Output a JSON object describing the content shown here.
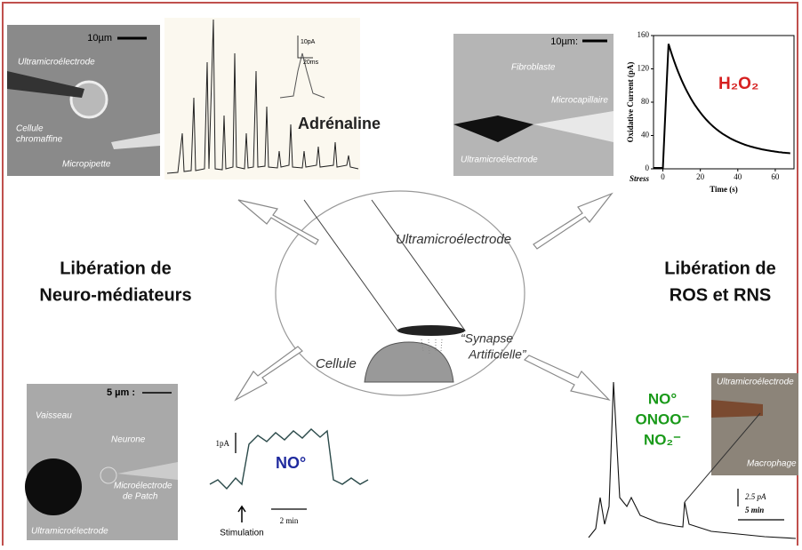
{
  "center": {
    "electrode": "Ultramicroélectrode",
    "cell": "Cellule",
    "synapse": [
      "“Synapse",
      "Artificielle”"
    ]
  },
  "left_title": [
    "Libération de",
    "Neuro-médiateurs"
  ],
  "right_title": [
    "Libération de",
    "ROS et RNS"
  ],
  "top_left": {
    "scale": "10µm",
    "labels": [
      "Ultramicroélectrode",
      "Cellule",
      "chromaffine",
      "Micropipette"
    ]
  },
  "adrenaline": {
    "label": "Adrénaline",
    "scale_current": "10pA",
    "scale_time": "20ms"
  },
  "top_right": {
    "scale": "10µm:",
    "labels": [
      "Fibroblaste",
      "Microcapillaire",
      "Ultramicroélectrode"
    ]
  },
  "h2o2": {
    "label": "H₂O₂",
    "y_axis_label": "Oxidative Current (pA)",
    "x_axis_label": "Time (s)",
    "yticks": [
      0,
      40,
      80,
      120,
      160
    ],
    "xticks": [
      0,
      20,
      40,
      60
    ],
    "ylim": [
      0,
      160
    ],
    "xlim": [
      -5,
      70
    ],
    "stimulus": "Stress"
  },
  "bottom_left": {
    "scale": "5 µm :",
    "labels": [
      "Vaisseau",
      "Neurone",
      "Microélectrode",
      "de Patch",
      "Ultramicroélectrode"
    ]
  },
  "no_trace": {
    "scale": "1pA",
    "label": "NO°",
    "time": "2 min",
    "stimulus": "Stimulation"
  },
  "bottom_right": {
    "species": [
      "NO°",
      "ONOO⁻",
      "NO₂⁻"
    ],
    "labels": [
      "Ultramicroélectrode",
      "Macrophage"
    ],
    "scale_current": "2.5 pA",
    "scale_time": "5 min"
  }
}
